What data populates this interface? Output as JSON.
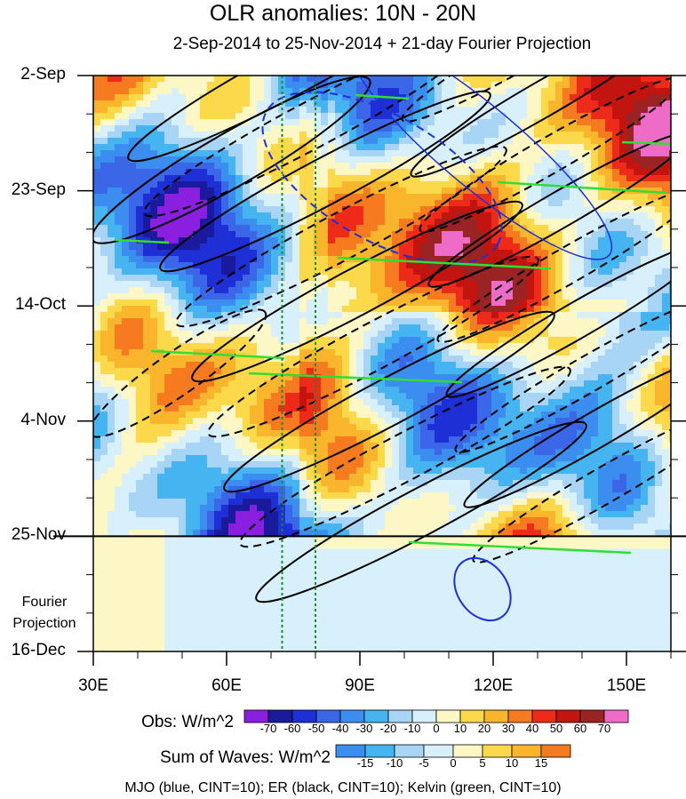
{
  "title": "OLR anomalies: 10N - 20N",
  "subtitle": "2-Sep-2014 to 25-Nov-2014 + 21-day Fourier Projection",
  "projection_label": [
    "Fourier",
    "Projection"
  ],
  "footer": "MJO (blue, CINT=10); ER (black, CINT=10); Kelvin (green, CINT=10)",
  "colorbars": [
    {
      "title": "Obs: W/m^2",
      "levels": [
        "-70",
        "-60",
        "-50",
        "-40",
        "-30",
        "-20",
        "-10",
        "0",
        "10",
        "20",
        "30",
        "40",
        "50",
        "60",
        "70"
      ],
      "colors": [
        "#8b1fe0",
        "#1a1a9c",
        "#1e2fd6",
        "#3b66e8",
        "#3b8ef0",
        "#45b4f0",
        "#a8d4f5",
        "#d8f0fb",
        "#fdf7c6",
        "#fbd94a",
        "#f9b52b",
        "#f57a20",
        "#ee2a1a",
        "#c21510",
        "#9a2323",
        "#ef6bc8"
      ]
    },
    {
      "title": "Sum of Waves: W/m^2",
      "levels": [
        "-15",
        "-10",
        "-5",
        "0",
        "5",
        "10",
        "15"
      ],
      "colors": [
        "#3b8ef0",
        "#45b4f0",
        "#a8d4f5",
        "#d8f0fb",
        "#fdf7c6",
        "#fbd94a",
        "#f9b52b",
        "#f57a20"
      ]
    }
  ],
  "chart_data": {
    "type": "heatmap",
    "title": "OLR anomalies: 10N - 20N",
    "subtitle": "2-Sep-2014 to 25-Nov-2014 + 21-day Fourier Projection",
    "x_axis": {
      "range": [
        30,
        160
      ],
      "ticks": [
        30,
        60,
        90,
        120,
        150
      ],
      "tick_labels": [
        "30E",
        "60E",
        "90E",
        "120E",
        "150E"
      ]
    },
    "y_axis": {
      "range": [
        "2014-09-02",
        "2014-12-16"
      ],
      "direction": "time increases downward",
      "ticks": [
        "2014-09-02",
        "2014-09-23",
        "2014-10-14",
        "2014-11-04",
        "2014-11-25",
        "2014-12-16"
      ],
      "tick_labels": [
        "2-Sep",
        "23-Sep",
        "14-Oct",
        "4-Nov",
        "25-Nov",
        "16-Dec"
      ]
    },
    "observation_end": "2014-11-25",
    "reference_longitudes": [
      72.5,
      80
    ],
    "overlays": [
      {
        "name": "MJO",
        "color": "#1e2fd6"
      },
      {
        "name": "ER",
        "color": "#000000"
      },
      {
        "name": "Kelvin",
        "color": "#33dd33"
      }
    ]
  }
}
